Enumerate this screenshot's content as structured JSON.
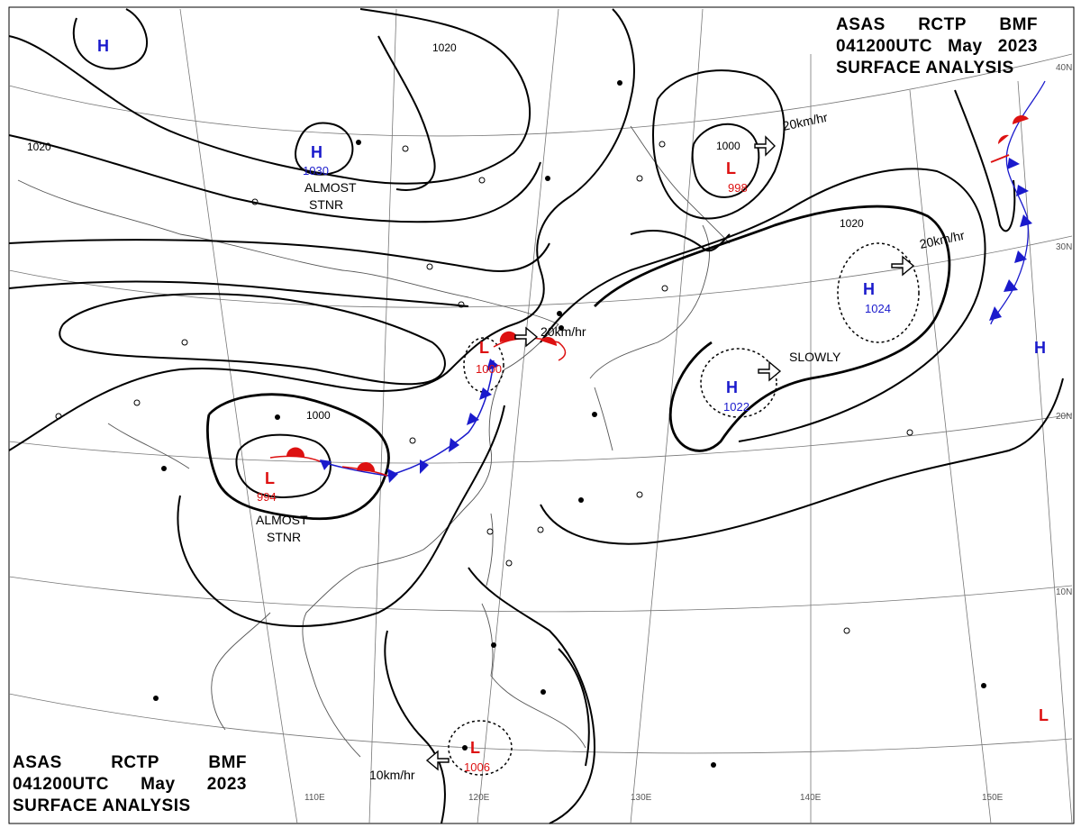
{
  "header": {
    "line1": [
      "ASAS",
      "RCTP",
      "BMF"
    ],
    "line2": [
      "041200UTC",
      "May",
      "2023"
    ],
    "line3": "SURFACE ANALYSIS"
  },
  "latitude_labels": [
    "40N",
    "30N",
    "20N",
    "10N"
  ],
  "longitude_labels": [
    "110E",
    "120E",
    "130E",
    "140E",
    "150E"
  ],
  "isobar_labels": [
    "1020",
    "1020",
    "1000",
    "1000",
    "1020"
  ],
  "pressure_centers": [
    {
      "type": "H",
      "value": ""
    },
    {
      "type": "H",
      "value": "1030"
    },
    {
      "type": "L",
      "value": "998"
    },
    {
      "type": "H",
      "value": "1024"
    },
    {
      "type": "H",
      "value": "1022"
    },
    {
      "type": "L",
      "value": "1000"
    },
    {
      "type": "L",
      "value": "994"
    },
    {
      "type": "L",
      "value": "1006"
    },
    {
      "type": "H",
      "value": ""
    },
    {
      "type": "L",
      "value": ""
    }
  ],
  "annotations": [
    "ALMOST",
    "STNR",
    "ALMOST",
    "STNR",
    "SLOWLY"
  ],
  "motions": [
    "20km/hr",
    "20km/hr",
    "20km/hr",
    "10km/hr"
  ],
  "colors": {
    "high": "#1a1acc",
    "low": "#dd1111",
    "cold_front": "#1a1acc",
    "warm_front": "#dd1111",
    "isobar": "#000000",
    "grid": "#777777",
    "coast": "#555555"
  }
}
